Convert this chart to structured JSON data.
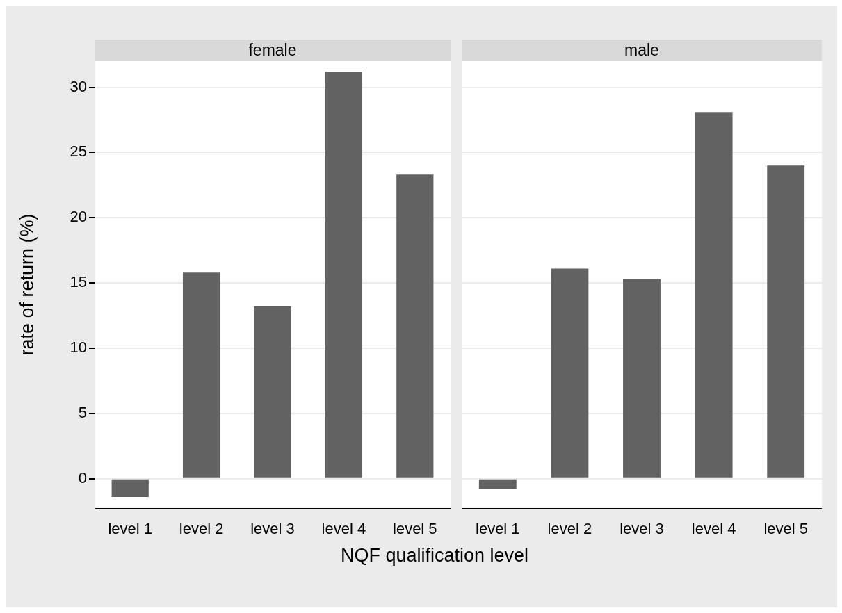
{
  "chart_data": [
    {
      "type": "bar",
      "title": "female",
      "ylabel": "rate of return (%)",
      "xlabel": "NQF qualification level",
      "categories": [
        "level 1",
        "level 2",
        "level 3",
        "level 4",
        "level 5"
      ],
      "values": [
        -1.4,
        15.8,
        13.2,
        31.2,
        23.3
      ],
      "color": "#626262",
      "ylim": [
        -2.25,
        32
      ],
      "yticks": [
        0,
        5,
        10,
        15,
        20,
        25,
        30
      ],
      "grid": "y",
      "legend": false
    },
    {
      "type": "bar",
      "title": "male",
      "categories": [
        "level 1",
        "level 2",
        "level 3",
        "level 4",
        "level 5"
      ],
      "values": [
        -0.8,
        16.1,
        15.3,
        28.1,
        24.0
      ],
      "color": "#626262",
      "ylim": [
        -2.25,
        32
      ],
      "yticks": [
        0,
        5,
        10,
        15,
        20,
        25,
        30
      ],
      "grid": "y",
      "legend": false,
      "tick_labels": "x"
    }
  ]
}
